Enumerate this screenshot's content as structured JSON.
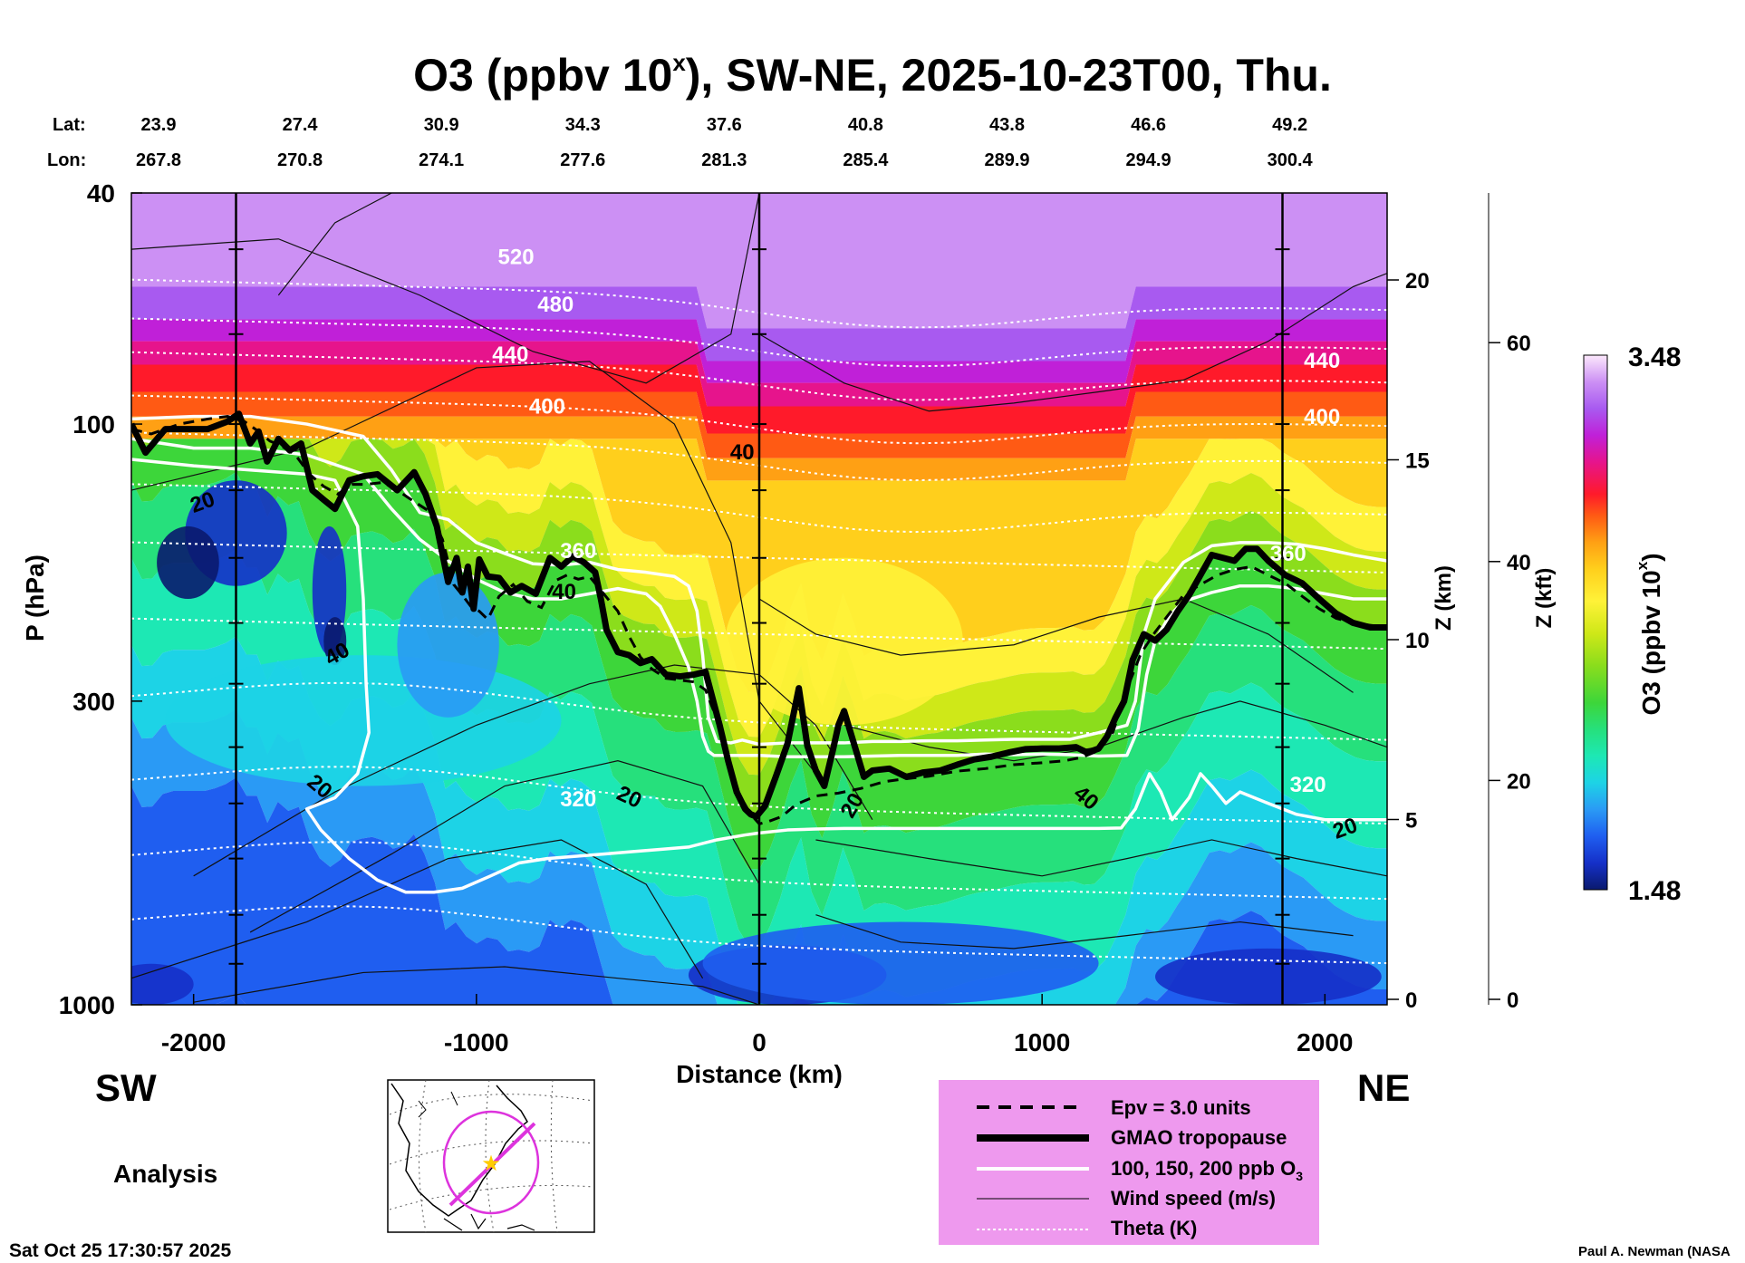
{
  "chart_data": {
    "type": "heatmap",
    "title": "O3 (ppbv 10",
    "title_sup": "x",
    "title_rest": "), SW-NE, 2025-10-23T00, Thu.",
    "lat_label": "Lat:",
    "lon_label": "Lon:",
    "lats": [
      "23.9",
      "27.4",
      "30.9",
      "34.3",
      "37.6",
      "40.8",
      "43.8",
      "46.6",
      "49.2"
    ],
    "lons": [
      "267.8",
      "270.8",
      "274.1",
      "277.6",
      "281.3",
      "285.4",
      "289.9",
      "294.9",
      "300.4"
    ],
    "station_distances_km": [
      -2220,
      -1720,
      -1220,
      -720,
      -220,
      280,
      780,
      1280,
      1780
    ],
    "xlabel": "Distance (km)",
    "xlim": [
      -2220,
      2220
    ],
    "x_ticks": [
      -2000,
      -1000,
      0,
      1000,
      2000
    ],
    "x_tick_labels": [
      "-2000",
      "-1000",
      "0",
      "1000",
      "2000"
    ],
    "ylabel": "P (hPa)",
    "ylim_hpa": [
      1000,
      40
    ],
    "y_ticks": [
      40,
      100,
      300,
      1000
    ],
    "y_tick_labels": [
      "40",
      "100",
      "300",
      "1000"
    ],
    "z_km_label": "Z (km)",
    "z_km_ticks": [
      0,
      5,
      10,
      15,
      20
    ],
    "z_km_labels": [
      "0",
      "5",
      "10",
      "15",
      "20"
    ],
    "z_kft_label": "Z (kft)",
    "z_kft_ticks": [
      0,
      20,
      40,
      60
    ],
    "z_kft_labels": [
      "0",
      "20",
      "40",
      "60"
    ],
    "colorbar_label": "O3 (ppbv 10",
    "colorbar_label_sup": "x",
    "colorbar_label_end": ")",
    "colorbar_range": [
      1.48,
      3.48
    ],
    "colorbar_min_label": "1.48",
    "colorbar_max_label": "3.48",
    "vertical_lines_km": [
      -1850,
      0,
      1850
    ],
    "tropopause": {
      "name": "GMAO tropopause",
      "x": [
        -2220,
        -2170,
        -2100,
        -1950,
        -1880,
        -1840,
        -1800,
        -1770,
        -1740,
        -1700,
        -1660,
        -1620,
        -1580,
        -1540,
        -1500,
        -1450,
        -1400,
        -1350,
        -1280,
        -1220,
        -1180,
        -1140,
        -1100,
        -1070,
        -1050,
        -1030,
        -1010,
        -990,
        -960,
        -920,
        -880,
        -840,
        -790,
        -740,
        -700,
        -660,
        -620,
        -580,
        -560,
        -540,
        -500,
        -460,
        -420,
        -380,
        -330,
        -280,
        -230,
        -190,
        -140,
        -110,
        -80,
        -50,
        -30,
        -10,
        20,
        60,
        100,
        140,
        170,
        200,
        230,
        260,
        280,
        300,
        340,
        370,
        400,
        460,
        520,
        580,
        640,
        700,
        760,
        820,
        880,
        940,
        1000,
        1060,
        1120,
        1160,
        1200,
        1230,
        1260,
        1290,
        1320,
        1360,
        1400,
        1440,
        1480,
        1520,
        1560,
        1600,
        1640,
        1680,
        1720,
        1760,
        1800,
        1860,
        1920,
        1980,
        2040,
        2100,
        2160,
        2220
      ],
      "p": [
        100,
        112,
        102,
        102,
        99,
        96,
        108,
        103,
        116,
        106,
        111,
        108,
        130,
        135,
        140,
        125,
        123,
        122,
        130,
        121,
        132,
        150,
        187,
        170,
        195,
        176,
        208,
        171,
        183,
        184,
        195,
        190,
        196,
        170,
        176,
        169,
        173,
        180,
        200,
        226,
        247,
        250,
        258,
        254,
        270,
        272,
        270,
        267,
        330,
        380,
        430,
        460,
        470,
        474,
        455,
        403,
        355,
        285,
        358,
        395,
        420,
        365,
        330,
        312,
        362,
        405,
        395,
        392,
        405,
        398,
        395,
        386,
        378,
        374,
        368,
        363,
        362,
        362,
        360,
        368,
        362,
        345,
        320,
        300,
        255,
        230,
        236,
        226,
        210,
        197,
        182,
        168,
        170,
        172,
        164,
        164,
        172,
        182,
        188,
        200,
        212,
        220,
        224,
        224
      ]
    },
    "epv_line": {
      "name": "Epv = 3.0 units",
      "x": [
        -2220,
        -2150,
        -2050,
        -1950,
        -1880,
        -1820,
        -1770,
        -1730,
        -1690,
        -1640,
        -1590,
        -1540,
        -1490,
        -1440,
        -1390,
        -1330,
        -1270,
        -1220,
        -1170,
        -1120,
        -1080,
        -1050,
        -1020,
        -990,
        -960,
        -920,
        -870,
        -820,
        -770,
        -720,
        -680,
        -640,
        -600,
        -550,
        -500,
        -460,
        -420,
        -380,
        -330,
        -280,
        -230,
        -190,
        -150,
        -110,
        -70,
        -30,
        0,
        30,
        80,
        130,
        200,
        280,
        360,
        440,
        520,
        600,
        700,
        800,
        900,
        1000,
        1080,
        1140,
        1200,
        1250,
        1300,
        1350,
        1400,
        1450,
        1500,
        1560,
        1620,
        1680,
        1740,
        1800,
        1860,
        1920,
        1980,
        2040,
        2100,
        2160,
        2220
      ],
      "p": [
        102,
        104,
        100,
        98,
        97,
        99,
        103,
        107,
        109,
        113,
        122,
        128,
        132,
        127,
        127,
        126,
        131,
        136,
        141,
        158,
        189,
        197,
        206,
        210,
        217,
        198,
        189,
        202,
        207,
        186,
        182,
        185,
        183,
        196,
        210,
        232,
        252,
        264,
        274,
        276,
        278,
        287,
        322,
        374,
        435,
        470,
        488,
        484,
        474,
        452,
        437,
        432,
        424,
        413,
        408,
        404,
        396,
        392,
        386,
        383,
        380,
        375,
        365,
        340,
        286,
        248,
        228,
        212,
        197,
        189,
        182,
        178,
        176,
        182,
        188,
        198,
        208,
        216,
        220,
        222,
        224
      ]
    },
    "o3_contours": {
      "name": "100, 150, 200 ppb O3",
      "series": [
        {
          "x": [
            -2220,
            -2000,
            -1800,
            -1600,
            -1400,
            -1300,
            -1200,
            -1100,
            -1000,
            -900,
            -800,
            -700,
            -600,
            -500,
            -400,
            -300,
            -250,
            -220,
            -200,
            -180,
            -150,
            -100,
            -60,
            -20,
            0,
            100,
            200,
            300,
            400,
            500,
            600,
            700,
            800,
            900,
            1000,
            1100,
            1200,
            1300,
            1330,
            1360,
            1400,
            1450,
            1500,
            1600,
            1700,
            1800,
            1900,
            2000,
            2100,
            2220
          ],
          "p": [
            98,
            97,
            97,
            100,
            105,
            120,
            142,
            146,
            160,
            167,
            174,
            175,
            173,
            178,
            180,
            183,
            190,
            210,
            250,
            320,
            352,
            354,
            350,
            354,
            356,
            354,
            354,
            354,
            352,
            352,
            351,
            351,
            350,
            349,
            349,
            349,
            340,
            330,
            300,
            230,
            200,
            186,
            173,
            162,
            160,
            160,
            161,
            164,
            168,
            172
          ]
        },
        {
          "x": [
            -2220,
            -2000,
            -1800,
            -1600,
            -1400,
            -1300,
            -1200,
            -1100,
            -1000,
            -900,
            -800,
            -700,
            -600,
            -500,
            -400,
            -350,
            -300,
            -250,
            -220,
            -200,
            -180,
            -160,
            -120,
            -60,
            0,
            100,
            200,
            300,
            400,
            500,
            600,
            700,
            800,
            900,
            1000,
            1100,
            1200,
            1300,
            1340,
            1370,
            1400,
            1450,
            1500,
            1600,
            1700,
            1800,
            1900,
            2000,
            2100,
            2220
          ],
          "p": [
            106,
            110,
            110,
            113,
            122,
            140,
            158,
            172,
            185,
            195,
            200,
            200,
            196,
            192,
            196,
            206,
            230,
            262,
            300,
            345,
            366,
            372,
            372,
            372,
            372,
            374,
            374,
            374,
            373,
            372,
            372,
            372,
            370,
            371,
            370,
            371,
            373,
            372,
            335,
            270,
            236,
            214,
            202,
            195,
            190,
            190,
            192,
            196,
            200,
            200
          ]
        },
        {
          "x": [
            -2220,
            -2000,
            -1800,
            -1600,
            -1500,
            -1420,
            -1400,
            -1390,
            -1380,
            -1420,
            -1500,
            -1600,
            -1550,
            -1450,
            -1350,
            -1250,
            -1150,
            -1050,
            -950,
            -850,
            -750,
            -650,
            -550,
            -450,
            -350,
            -250,
            -150,
            -50,
            0,
            100,
            200,
            300,
            400,
            500,
            600,
            700,
            800,
            900,
            1000,
            1100,
            1200,
            1280,
            1330,
            1380,
            1420,
            1460,
            1520,
            1560,
            1600,
            1650,
            1700,
            1800,
            1900,
            2000,
            2100,
            2220
          ],
          "p": [
            115,
            118,
            120,
            122,
            125,
            150,
            200,
            280,
            340,
            400,
            440,
            460,
            500,
            560,
            610,
            640,
            640,
            630,
            600,
            570,
            560,
            555,
            550,
            545,
            540,
            535,
            520,
            510,
            506,
            500,
            498,
            497,
            497,
            497,
            497,
            497,
            497,
            497,
            497,
            497,
            497,
            496,
            460,
            400,
            430,
            480,
            440,
            400,
            420,
            450,
            430,
            450,
            470,
            480,
            480,
            480
          ]
        }
      ]
    },
    "wind_contour_labels": [
      "20",
      "40",
      "20",
      "20",
      "40",
      "40",
      "20",
      "40",
      "20"
    ],
    "theta_contour_labels": [
      "520",
      "480",
      "440",
      "400",
      "360",
      "320",
      "440",
      "400",
      "360",
      "320"
    ],
    "direction_left": "SW",
    "direction_right": "NE",
    "analysis_label": "Analysis",
    "legend": [
      {
        "label": "Epv = 3.0 units",
        "style": "dashed"
      },
      {
        "label": "GMAO tropopause",
        "style": "thick"
      },
      {
        "label": "100, 150, 200 ppb O",
        "sub": "3",
        "style": "white"
      },
      {
        "label": "Wind speed (m/s)",
        "style": "thin"
      },
      {
        "label": "Theta (K)",
        "style": "dotted"
      }
    ]
  },
  "footer": {
    "timestamp": "Sat Oct 25 17:30:57 2025",
    "credit": "Paul A. Newman (NASA"
  },
  "colors": {
    "legend_bg": "#ee99ee",
    "map_path": "#dd33dd",
    "map_star": "#ffcc00",
    "palette": [
      "#0a1a6e",
      "#1530c8",
      "#1f5ef0",
      "#2a9af5",
      "#1dd3e6",
      "#1de8b4",
      "#26e07c",
      "#3dd63a",
      "#8bdd1c",
      "#cfe818",
      "#fff238",
      "#ffcf1c",
      "#ffa014",
      "#ff5a14",
      "#ff1a2a",
      "#e6148c",
      "#c020d8",
      "#a85af0",
      "#cc90f4",
      "#f0c8f8",
      "#fce8fc"
    ]
  }
}
